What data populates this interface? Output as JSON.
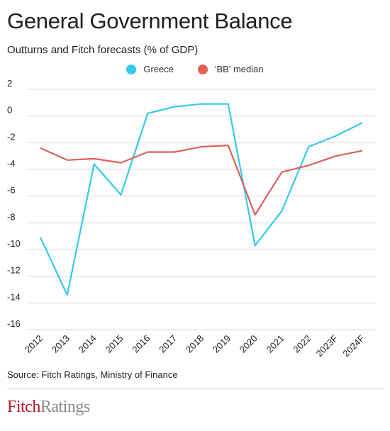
{
  "title": "General Government Balance",
  "subtitle": "Outturns and Fitch forecasts (% of GDP)",
  "source": "Source: Fitch Ratings, Ministry of Finance",
  "logo": {
    "part1": "Fitch",
    "part2": "Ratings"
  },
  "colors": {
    "greece": "#34c9ec",
    "bb_median": "#e0605a",
    "grid": "#d9d9d9"
  },
  "chart_data": {
    "type": "line",
    "categories": [
      "2012",
      "2013",
      "2014",
      "2015",
      "2016",
      "2017",
      "2018",
      "2019",
      "2020",
      "2021",
      "2022",
      "2023F",
      "2024F"
    ],
    "series": [
      {
        "name": "Greece",
        "values": [
          -9.1,
          -13.4,
          -3.6,
          -5.9,
          0.2,
          0.7,
          0.9,
          0.9,
          -9.7,
          -7.1,
          -2.3,
          -1.5,
          -0.5
        ]
      },
      {
        "name": "'BB' median",
        "values": [
          -2.4,
          -3.3,
          -3.2,
          -3.5,
          -2.7,
          -2.7,
          -2.3,
          -2.2,
          -7.4,
          -4.2,
          -3.7,
          -3.0,
          -2.6
        ]
      }
    ],
    "ylim": [
      -16,
      2
    ],
    "yticks": [
      "2",
      "0",
      "-2",
      "-4",
      "-6",
      "-8",
      "-10",
      "-12",
      "-14",
      "-16"
    ],
    "xlabel": "",
    "ylabel": "",
    "grid": true,
    "legend": "top-center"
  }
}
